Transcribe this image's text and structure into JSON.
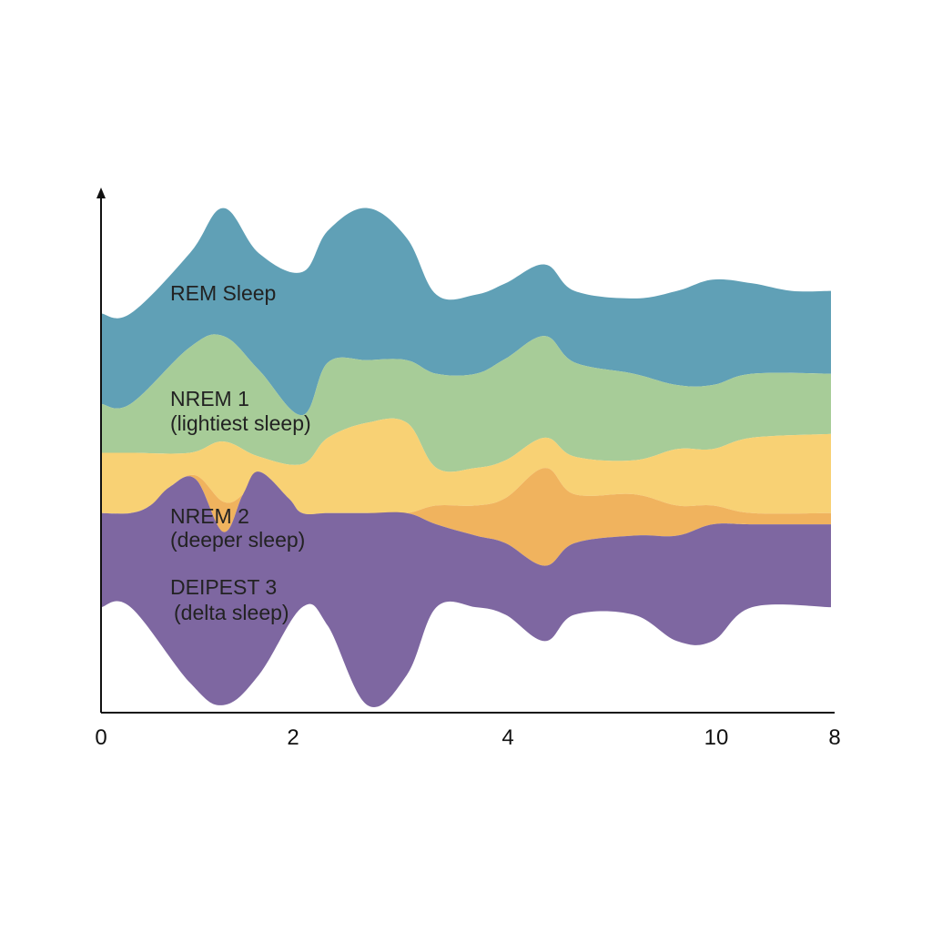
{
  "chart_data": {
    "type": "area",
    "subtype": "streamgraph",
    "title": "",
    "xlabel": "",
    "ylabel": "",
    "grid": false,
    "legend": "inline labels",
    "x_ticks": [
      "0",
      "2",
      "4",
      "10",
      "8"
    ],
    "series": [
      {
        "key": "rem",
        "label_lines": [
          "REM Sleep"
        ],
        "color": "#60a0b6",
        "top": [
          [
            0,
            -2.4
          ],
          [
            0.15,
            -2.4
          ],
          [
            0.45,
            -3.2
          ],
          [
            0.62,
            -3.8
          ],
          [
            0.8,
            -3.2
          ],
          [
            1.02,
            -2.95
          ],
          [
            1.15,
            -3.5
          ],
          [
            1.35,
            -3.8
          ],
          [
            1.55,
            -3.4
          ],
          [
            1.7,
            -2.65
          ],
          [
            1.9,
            -2.65
          ],
          [
            2.05,
            -2.8
          ],
          [
            2.25,
            -3.05
          ],
          [
            2.4,
            -2.7
          ],
          [
            2.7,
            -2.6
          ],
          [
            2.92,
            -2.7
          ],
          [
            3.1,
            -2.85
          ],
          [
            3.3,
            -2.8
          ],
          [
            3.5,
            -2.7
          ],
          [
            3.7,
            -2.7
          ]
        ],
        "bottom": [
          [
            0,
            -1.2
          ],
          [
            0.15,
            -1.2
          ],
          [
            0.45,
            -1.95
          ],
          [
            0.62,
            -2.1
          ],
          [
            0.8,
            -1.65
          ],
          [
            1.02,
            -1.05
          ],
          [
            1.15,
            -1.75
          ],
          [
            1.35,
            -1.78
          ],
          [
            1.55,
            -1.78
          ],
          [
            1.7,
            -1.6
          ],
          [
            1.9,
            -1.6
          ],
          [
            2.05,
            -1.8
          ],
          [
            2.25,
            -2.1
          ],
          [
            2.4,
            -1.75
          ],
          [
            2.7,
            -1.6
          ],
          [
            2.92,
            -1.45
          ],
          [
            3.1,
            -1.45
          ],
          [
            3.3,
            -1.6
          ],
          [
            3.7,
            -1.6
          ]
        ]
      },
      {
        "key": "nrem1",
        "label_lines": [
          "NREM 1",
          "(lightiest sleep)"
        ],
        "color": "#a7cc98",
        "top": [
          [
            0,
            -1.2
          ],
          [
            0.15,
            -1.2
          ],
          [
            0.45,
            -1.95
          ],
          [
            0.62,
            -2.1
          ],
          [
            0.8,
            -1.65
          ],
          [
            1.02,
            -1.05
          ],
          [
            1.15,
            -1.75
          ],
          [
            1.35,
            -1.78
          ],
          [
            1.55,
            -1.78
          ],
          [
            1.7,
            -1.6
          ],
          [
            1.9,
            -1.6
          ],
          [
            2.05,
            -1.8
          ],
          [
            2.25,
            -2.1
          ],
          [
            2.4,
            -1.75
          ],
          [
            2.7,
            -1.6
          ],
          [
            2.92,
            -1.45
          ],
          [
            3.1,
            -1.45
          ],
          [
            3.3,
            -1.6
          ],
          [
            3.7,
            -1.6
          ]
        ],
        "bottom": [
          [
            0,
            -0.55
          ],
          [
            0.15,
            -0.55
          ],
          [
            0.45,
            -0.55
          ],
          [
            0.62,
            -0.7
          ],
          [
            0.8,
            -0.5
          ],
          [
            1.02,
            -0.4
          ],
          [
            1.15,
            -0.75
          ],
          [
            1.35,
            -0.95
          ],
          [
            1.55,
            -0.95
          ],
          [
            1.7,
            -0.35
          ],
          [
            1.9,
            -0.35
          ],
          [
            2.05,
            -0.45
          ],
          [
            2.25,
            -0.75
          ],
          [
            2.4,
            -0.5
          ],
          [
            2.7,
            -0.45
          ],
          [
            2.92,
            -0.6
          ],
          [
            3.1,
            -0.6
          ],
          [
            3.3,
            -0.75
          ],
          [
            3.7,
            -0.8
          ]
        ]
      },
      {
        "key": "nrem2",
        "label_lines": [
          "NREM 2",
          "(deeper sleep)"
        ],
        "color": "#f8d174",
        "top": [
          [
            0,
            -0.55
          ],
          [
            0.15,
            -0.55
          ],
          [
            0.45,
            -0.55
          ],
          [
            0.62,
            -0.7
          ],
          [
            0.8,
            -0.5
          ],
          [
            1.02,
            -0.4
          ],
          [
            1.15,
            -0.75
          ],
          [
            1.35,
            -0.95
          ],
          [
            1.55,
            -0.95
          ],
          [
            1.7,
            -0.35
          ],
          [
            1.9,
            -0.35
          ],
          [
            2.05,
            -0.45
          ],
          [
            2.25,
            -0.75
          ],
          [
            2.4,
            -0.5
          ],
          [
            2.7,
            -0.45
          ],
          [
            2.92,
            -0.6
          ],
          [
            3.1,
            -0.6
          ],
          [
            3.3,
            -0.75
          ],
          [
            3.7,
            -0.8
          ]
        ],
        "bottom": [
          [
            0,
            0.25
          ],
          [
            0.15,
            0.25
          ],
          [
            0.25,
            0.15
          ],
          [
            0.35,
            -0.1
          ],
          [
            0.48,
            -0.25
          ],
          [
            0.62,
            0.1
          ],
          [
            0.72,
            0.0
          ],
          [
            0.8,
            -0.3
          ],
          [
            0.95,
            0.05
          ],
          [
            1.02,
            0.25
          ],
          [
            1.15,
            0.25
          ],
          [
            1.35,
            0.25
          ],
          [
            1.55,
            0.25
          ],
          [
            1.7,
            0.15
          ],
          [
            1.9,
            0.15
          ],
          [
            2.05,
            0.05
          ],
          [
            2.25,
            -0.35
          ],
          [
            2.4,
            0.0
          ],
          [
            2.7,
            0.0
          ],
          [
            2.92,
            0.15
          ],
          [
            3.1,
            0.15
          ],
          [
            3.3,
            0.25
          ],
          [
            3.7,
            0.25
          ]
        ]
      },
      {
        "key": "nrem2b",
        "label_lines": [],
        "color": "#f0b35e",
        "top": [
          [
            0,
            0.25
          ],
          [
            0.15,
            0.25
          ],
          [
            0.25,
            0.15
          ],
          [
            0.35,
            -0.1
          ],
          [
            0.48,
            -0.25
          ],
          [
            0.62,
            0.1
          ],
          [
            0.72,
            0.0
          ],
          [
            0.8,
            -0.3
          ],
          [
            0.95,
            0.05
          ],
          [
            1.02,
            0.25
          ],
          [
            1.15,
            0.25
          ],
          [
            1.35,
            0.25
          ],
          [
            1.55,
            0.25
          ],
          [
            1.7,
            0.15
          ],
          [
            1.9,
            0.15
          ],
          [
            2.05,
            0.05
          ],
          [
            2.25,
            -0.35
          ],
          [
            2.4,
            0.0
          ],
          [
            2.7,
            0.0
          ],
          [
            2.92,
            0.15
          ],
          [
            3.1,
            0.15
          ],
          [
            3.3,
            0.25
          ],
          [
            3.7,
            0.25
          ]
        ],
        "bottom": [
          [
            0,
            0.25
          ],
          [
            0.15,
            0.25
          ],
          [
            0.25,
            0.15
          ],
          [
            0.35,
            -0.1
          ],
          [
            0.48,
            -0.2
          ],
          [
            0.62,
            0.5
          ],
          [
            0.72,
            0.0
          ],
          [
            0.8,
            -0.3
          ],
          [
            0.95,
            0.05
          ],
          [
            1.02,
            0.25
          ],
          [
            1.15,
            0.25
          ],
          [
            1.35,
            0.25
          ],
          [
            1.55,
            0.25
          ],
          [
            1.7,
            0.4
          ],
          [
            1.9,
            0.55
          ],
          [
            2.05,
            0.65
          ],
          [
            2.25,
            0.95
          ],
          [
            2.4,
            0.65
          ],
          [
            2.7,
            0.55
          ],
          [
            2.92,
            0.55
          ],
          [
            3.1,
            0.4
          ],
          [
            3.3,
            0.4
          ],
          [
            3.7,
            0.4
          ]
        ]
      },
      {
        "key": "deep",
        "label_lines": [
          "DEIPEST 3",
          "(delta sleep)"
        ],
        "color": "#7e67a1",
        "top": [
          [
            0,
            0.25
          ],
          [
            0.15,
            0.25
          ],
          [
            0.25,
            0.15
          ],
          [
            0.35,
            -0.1
          ],
          [
            0.48,
            -0.2
          ],
          [
            0.62,
            0.5
          ],
          [
            0.72,
            0.0
          ],
          [
            0.8,
            -0.3
          ],
          [
            0.95,
            0.05
          ],
          [
            1.02,
            0.25
          ],
          [
            1.15,
            0.25
          ],
          [
            1.35,
            0.25
          ],
          [
            1.55,
            0.25
          ],
          [
            1.7,
            0.4
          ],
          [
            1.9,
            0.55
          ],
          [
            2.05,
            0.65
          ],
          [
            2.25,
            0.95
          ],
          [
            2.4,
            0.65
          ],
          [
            2.7,
            0.55
          ],
          [
            2.92,
            0.55
          ],
          [
            3.1,
            0.4
          ],
          [
            3.3,
            0.4
          ],
          [
            3.7,
            0.4
          ]
        ],
        "bottom": [
          [
            0,
            1.5
          ],
          [
            0.15,
            1.5
          ],
          [
            0.45,
            2.5
          ],
          [
            0.62,
            2.8
          ],
          [
            0.8,
            2.4
          ],
          [
            1.02,
            1.5
          ],
          [
            1.15,
            1.75
          ],
          [
            1.35,
            2.8
          ],
          [
            1.55,
            2.4
          ],
          [
            1.7,
            1.5
          ],
          [
            1.9,
            1.5
          ],
          [
            2.05,
            1.6
          ],
          [
            2.25,
            1.95
          ],
          [
            2.4,
            1.6
          ],
          [
            2.7,
            1.6
          ],
          [
            2.92,
            1.95
          ],
          [
            3.1,
            1.95
          ],
          [
            3.3,
            1.5
          ],
          [
            3.7,
            1.5
          ]
        ]
      }
    ],
    "x_domain": [
      0,
      3.7
    ],
    "y_domain": [
      -4.0,
      2.9
    ]
  }
}
